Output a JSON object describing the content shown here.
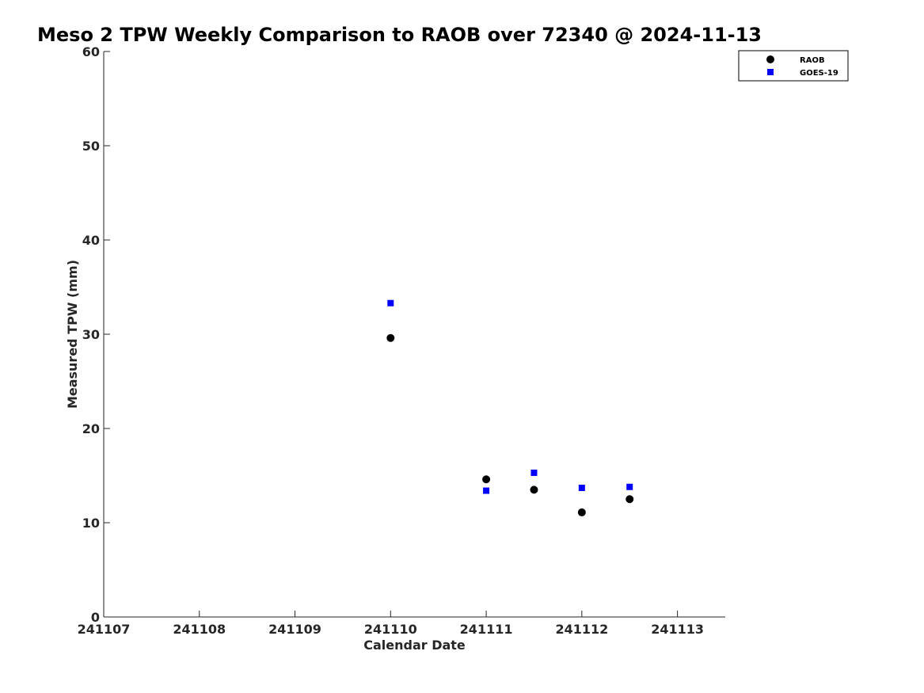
{
  "chart_data": {
    "type": "scatter",
    "title": "Meso 2 TPW Weekly Comparison to RAOB over 72340 @ 2024-11-13",
    "xlabel": "Calendar Date",
    "ylabel": "Measured TPW (mm)",
    "x_ticks": [
      "241107",
      "241108",
      "241109",
      "241110",
      "241111",
      "241112",
      "241113"
    ],
    "xlim": [
      "241107",
      "241113.5"
    ],
    "y_ticks": [
      "0",
      "10",
      "20",
      "30",
      "40",
      "50",
      "60"
    ],
    "ylim": [
      0,
      60
    ],
    "grid": false,
    "legend_position": "top-right",
    "series": [
      {
        "name": "RAOB",
        "marker": "circle",
        "color": "#000000",
        "points": [
          {
            "x": "241110.0",
            "y": 29.6
          },
          {
            "x": "241111.0",
            "y": 14.6
          },
          {
            "x": "241111.5",
            "y": 13.5
          },
          {
            "x": "241112.0",
            "y": 11.1
          },
          {
            "x": "241112.5",
            "y": 12.5
          }
        ]
      },
      {
        "name": "GOES-19",
        "marker": "square",
        "color": "#0000ff",
        "points": [
          {
            "x": "241110.0",
            "y": 33.3
          },
          {
            "x": "241111.0",
            "y": 13.4
          },
          {
            "x": "241111.5",
            "y": 15.3
          },
          {
            "x": "241112.0",
            "y": 13.7
          },
          {
            "x": "241112.5",
            "y": 13.8
          }
        ]
      }
    ]
  }
}
